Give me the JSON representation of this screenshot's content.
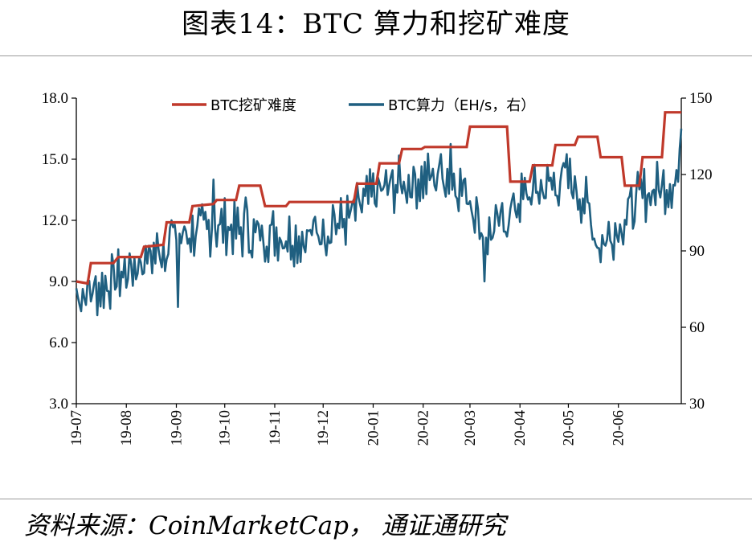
{
  "title": "图表14：BTC 算力和挖矿难度",
  "source": "资料来源：CoinMarketCap， 通证通研究",
  "colors": {
    "difficulty": "#c0392b",
    "hashrate": "#1f5f80"
  },
  "chart_data": {
    "type": "line",
    "title": "图表14：BTC 算力和挖矿难度",
    "xlabel": "",
    "ylabel": "",
    "ylabel_right": "",
    "ylim": [
      3.0,
      18.0
    ],
    "ylim_right": [
      30,
      150
    ],
    "yticks": [
      "3.0",
      "6.0",
      "9.0",
      "12.0",
      "15.0",
      "18.0"
    ],
    "yticks_right": [
      "30",
      "60",
      "90",
      "120",
      "150"
    ],
    "x_categories": [
      "19-07",
      "19-08",
      "19-09",
      "19-10",
      "19-11",
      "19-12",
      "20-01",
      "20-02",
      "20-03",
      "20-04",
      "20-05",
      "20-06"
    ],
    "x_start": "2019-07-01",
    "x_end": "2020-07-10",
    "grid": false,
    "legend_position": "top",
    "series": [
      {
        "name": "BTC挖矿难度",
        "axis": "left",
        "color": "#c0392b",
        "step": true,
        "points": [
          [
            "2019-07-01",
            9.0
          ],
          [
            "2019-07-08",
            8.9
          ],
          [
            "2019-07-10",
            9.9
          ],
          [
            "2019-07-24",
            9.9
          ],
          [
            "2019-07-27",
            10.2
          ],
          [
            "2019-08-10",
            10.2
          ],
          [
            "2019-08-12",
            10.7
          ],
          [
            "2019-08-24",
            10.8
          ],
          [
            "2019-08-26",
            11.9
          ],
          [
            "2019-09-09",
            11.9
          ],
          [
            "2019-09-11",
            12.7
          ],
          [
            "2019-09-24",
            12.8
          ],
          [
            "2019-09-26",
            13.0
          ],
          [
            "2019-10-08",
            13.0
          ],
          [
            "2019-10-10",
            13.7
          ],
          [
            "2019-10-23",
            13.7
          ],
          [
            "2019-10-26",
            12.7
          ],
          [
            "2019-11-08",
            12.7
          ],
          [
            "2019-11-10",
            12.9
          ],
          [
            "2019-12-20",
            12.9
          ],
          [
            "2019-12-22",
            13.8
          ],
          [
            "2020-01-03",
            13.8
          ],
          [
            "2020-01-05",
            14.8
          ],
          [
            "2020-01-17",
            14.8
          ],
          [
            "2020-01-19",
            15.5
          ],
          [
            "2020-01-31",
            15.5
          ],
          [
            "2020-02-02",
            15.6
          ],
          [
            "2020-02-14",
            15.6
          ],
          [
            "2020-02-16",
            15.6
          ],
          [
            "2020-02-28",
            15.6
          ],
          [
            "2020-03-01",
            16.6
          ],
          [
            "2020-03-24",
            16.6
          ],
          [
            "2020-03-26",
            13.9
          ],
          [
            "2020-04-07",
            13.9
          ],
          [
            "2020-04-09",
            14.7
          ],
          [
            "2020-04-21",
            14.7
          ],
          [
            "2020-04-23",
            15.7
          ],
          [
            "2020-05-05",
            15.7
          ],
          [
            "2020-05-07",
            16.1
          ],
          [
            "2020-05-19",
            16.1
          ],
          [
            "2020-05-21",
            15.1
          ],
          [
            "2020-06-03",
            15.1
          ],
          [
            "2020-06-05",
            13.7
          ],
          [
            "2020-06-14",
            13.7
          ],
          [
            "2020-06-16",
            15.1
          ],
          [
            "2020-06-28",
            15.1
          ],
          [
            "2020-06-30",
            17.3
          ],
          [
            "2020-07-10",
            17.3
          ]
        ]
      },
      {
        "name": "BTC算力（EH/s，右）",
        "axis": "right",
        "color": "#1f5f80",
        "anchors": [
          [
            "2019-07-01",
            73
          ],
          [
            "2019-07-15",
            75
          ],
          [
            "2019-08-01",
            82
          ],
          [
            "2019-08-16",
            88
          ],
          [
            "2019-09-01",
            95
          ],
          [
            "2019-09-16",
            98
          ],
          [
            "2019-10-01",
            100
          ],
          [
            "2019-10-16",
            96
          ],
          [
            "2019-11-01",
            97
          ],
          [
            "2019-11-16",
            95
          ],
          [
            "2019-12-01",
            98
          ],
          [
            "2019-12-16",
            102
          ],
          [
            "2020-01-01",
            112
          ],
          [
            "2020-01-16",
            116
          ],
          [
            "2020-02-01",
            118
          ],
          [
            "2020-02-16",
            120
          ],
          [
            "2020-03-01",
            112
          ],
          [
            "2020-03-10",
            95
          ],
          [
            "2020-03-20",
            100
          ],
          [
            "2020-04-01",
            110
          ],
          [
            "2020-04-16",
            115
          ],
          [
            "2020-05-01",
            118
          ],
          [
            "2020-05-11",
            110
          ],
          [
            "2020-05-20",
            92
          ],
          [
            "2020-06-01",
            100
          ],
          [
            "2020-06-16",
            112
          ],
          [
            "2020-07-01",
            116
          ],
          [
            "2020-07-10",
            120
          ]
        ],
        "amplitude": 9,
        "highlights": [
          [
            "2019-08-29",
            102
          ],
          [
            "2019-09-02",
            68
          ],
          [
            "2019-09-24",
            118
          ],
          [
            "2019-10-14",
            111
          ],
          [
            "2019-12-07",
            108
          ],
          [
            "2020-02-12",
            128
          ],
          [
            "2020-02-18",
            132
          ],
          [
            "2020-03-10",
            78
          ],
          [
            "2020-04-30",
            128
          ],
          [
            "2020-07-10",
            138
          ]
        ]
      }
    ]
  }
}
